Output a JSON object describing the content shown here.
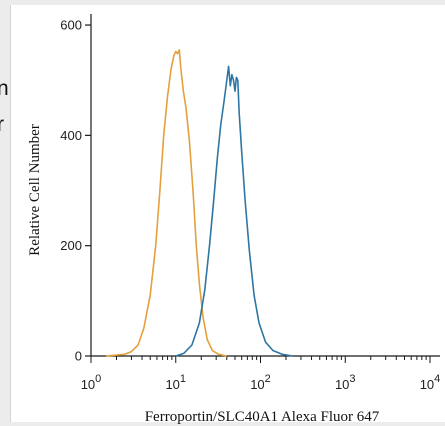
{
  "left_clipped_text": [
    "n",
    "r"
  ],
  "chart_data": {
    "type": "line",
    "title": "",
    "xlabel": "Ferroportin/SLC40A1 Alexa Fluor 647",
    "ylabel": "Relative Cell Number",
    "x_scale": "log",
    "xlim": [
      1,
      10000
    ],
    "ylim": [
      0,
      620
    ],
    "y_ticks": [
      0,
      200,
      400,
      600
    ],
    "y_tick_labels": [
      "0",
      "200",
      "400",
      "600"
    ],
    "x_tick_bases": [
      "10",
      "10",
      "10",
      "10",
      "10"
    ],
    "x_tick_exponents": [
      "0",
      "1",
      "2",
      "3",
      "4"
    ],
    "grid": false,
    "colors": {
      "orange": "#e3a03c",
      "blue": "#2e76a4",
      "axis": "#1a1a1a"
    },
    "series": [
      {
        "color": "#e3a03c",
        "points": [
          [
            1.5,
            0
          ],
          [
            2.5,
            3
          ],
          [
            3.0,
            8
          ],
          [
            3.6,
            20
          ],
          [
            4.2,
            50
          ],
          [
            5.0,
            110
          ],
          [
            5.8,
            200
          ],
          [
            6.5,
            300
          ],
          [
            7.2,
            400
          ],
          [
            8.0,
            470
          ],
          [
            8.8,
            520
          ],
          [
            9.5,
            545
          ],
          [
            10,
            552
          ],
          [
            10.5,
            548
          ],
          [
            11,
            555
          ],
          [
            11.5,
            520
          ],
          [
            12.3,
            480
          ],
          [
            13.2,
            450
          ],
          [
            14.5,
            390
          ],
          [
            16,
            300
          ],
          [
            17.5,
            200
          ],
          [
            19,
            130
          ],
          [
            21,
            70
          ],
          [
            23.5,
            30
          ],
          [
            27,
            10
          ],
          [
            32,
            3
          ],
          [
            40,
            0
          ]
        ]
      },
      {
        "color": "#2e76a4",
        "points": [
          [
            10,
            0
          ],
          [
            12.5,
            5
          ],
          [
            15.5,
            20
          ],
          [
            19,
            60
          ],
          [
            22,
            120
          ],
          [
            25,
            200
          ],
          [
            28,
            280
          ],
          [
            31,
            360
          ],
          [
            34,
            420
          ],
          [
            37,
            460
          ],
          [
            40,
            500
          ],
          [
            42,
            525
          ],
          [
            44,
            490
          ],
          [
            46,
            510
          ],
          [
            48,
            500
          ],
          [
            50,
            480
          ],
          [
            52,
            505
          ],
          [
            54,
            500
          ],
          [
            56,
            440
          ],
          [
            60,
            370
          ],
          [
            66,
            280
          ],
          [
            74,
            190
          ],
          [
            84,
            110
          ],
          [
            96,
            60
          ],
          [
            115,
            25
          ],
          [
            140,
            10
          ],
          [
            180,
            3
          ],
          [
            240,
            0
          ]
        ]
      }
    ]
  }
}
